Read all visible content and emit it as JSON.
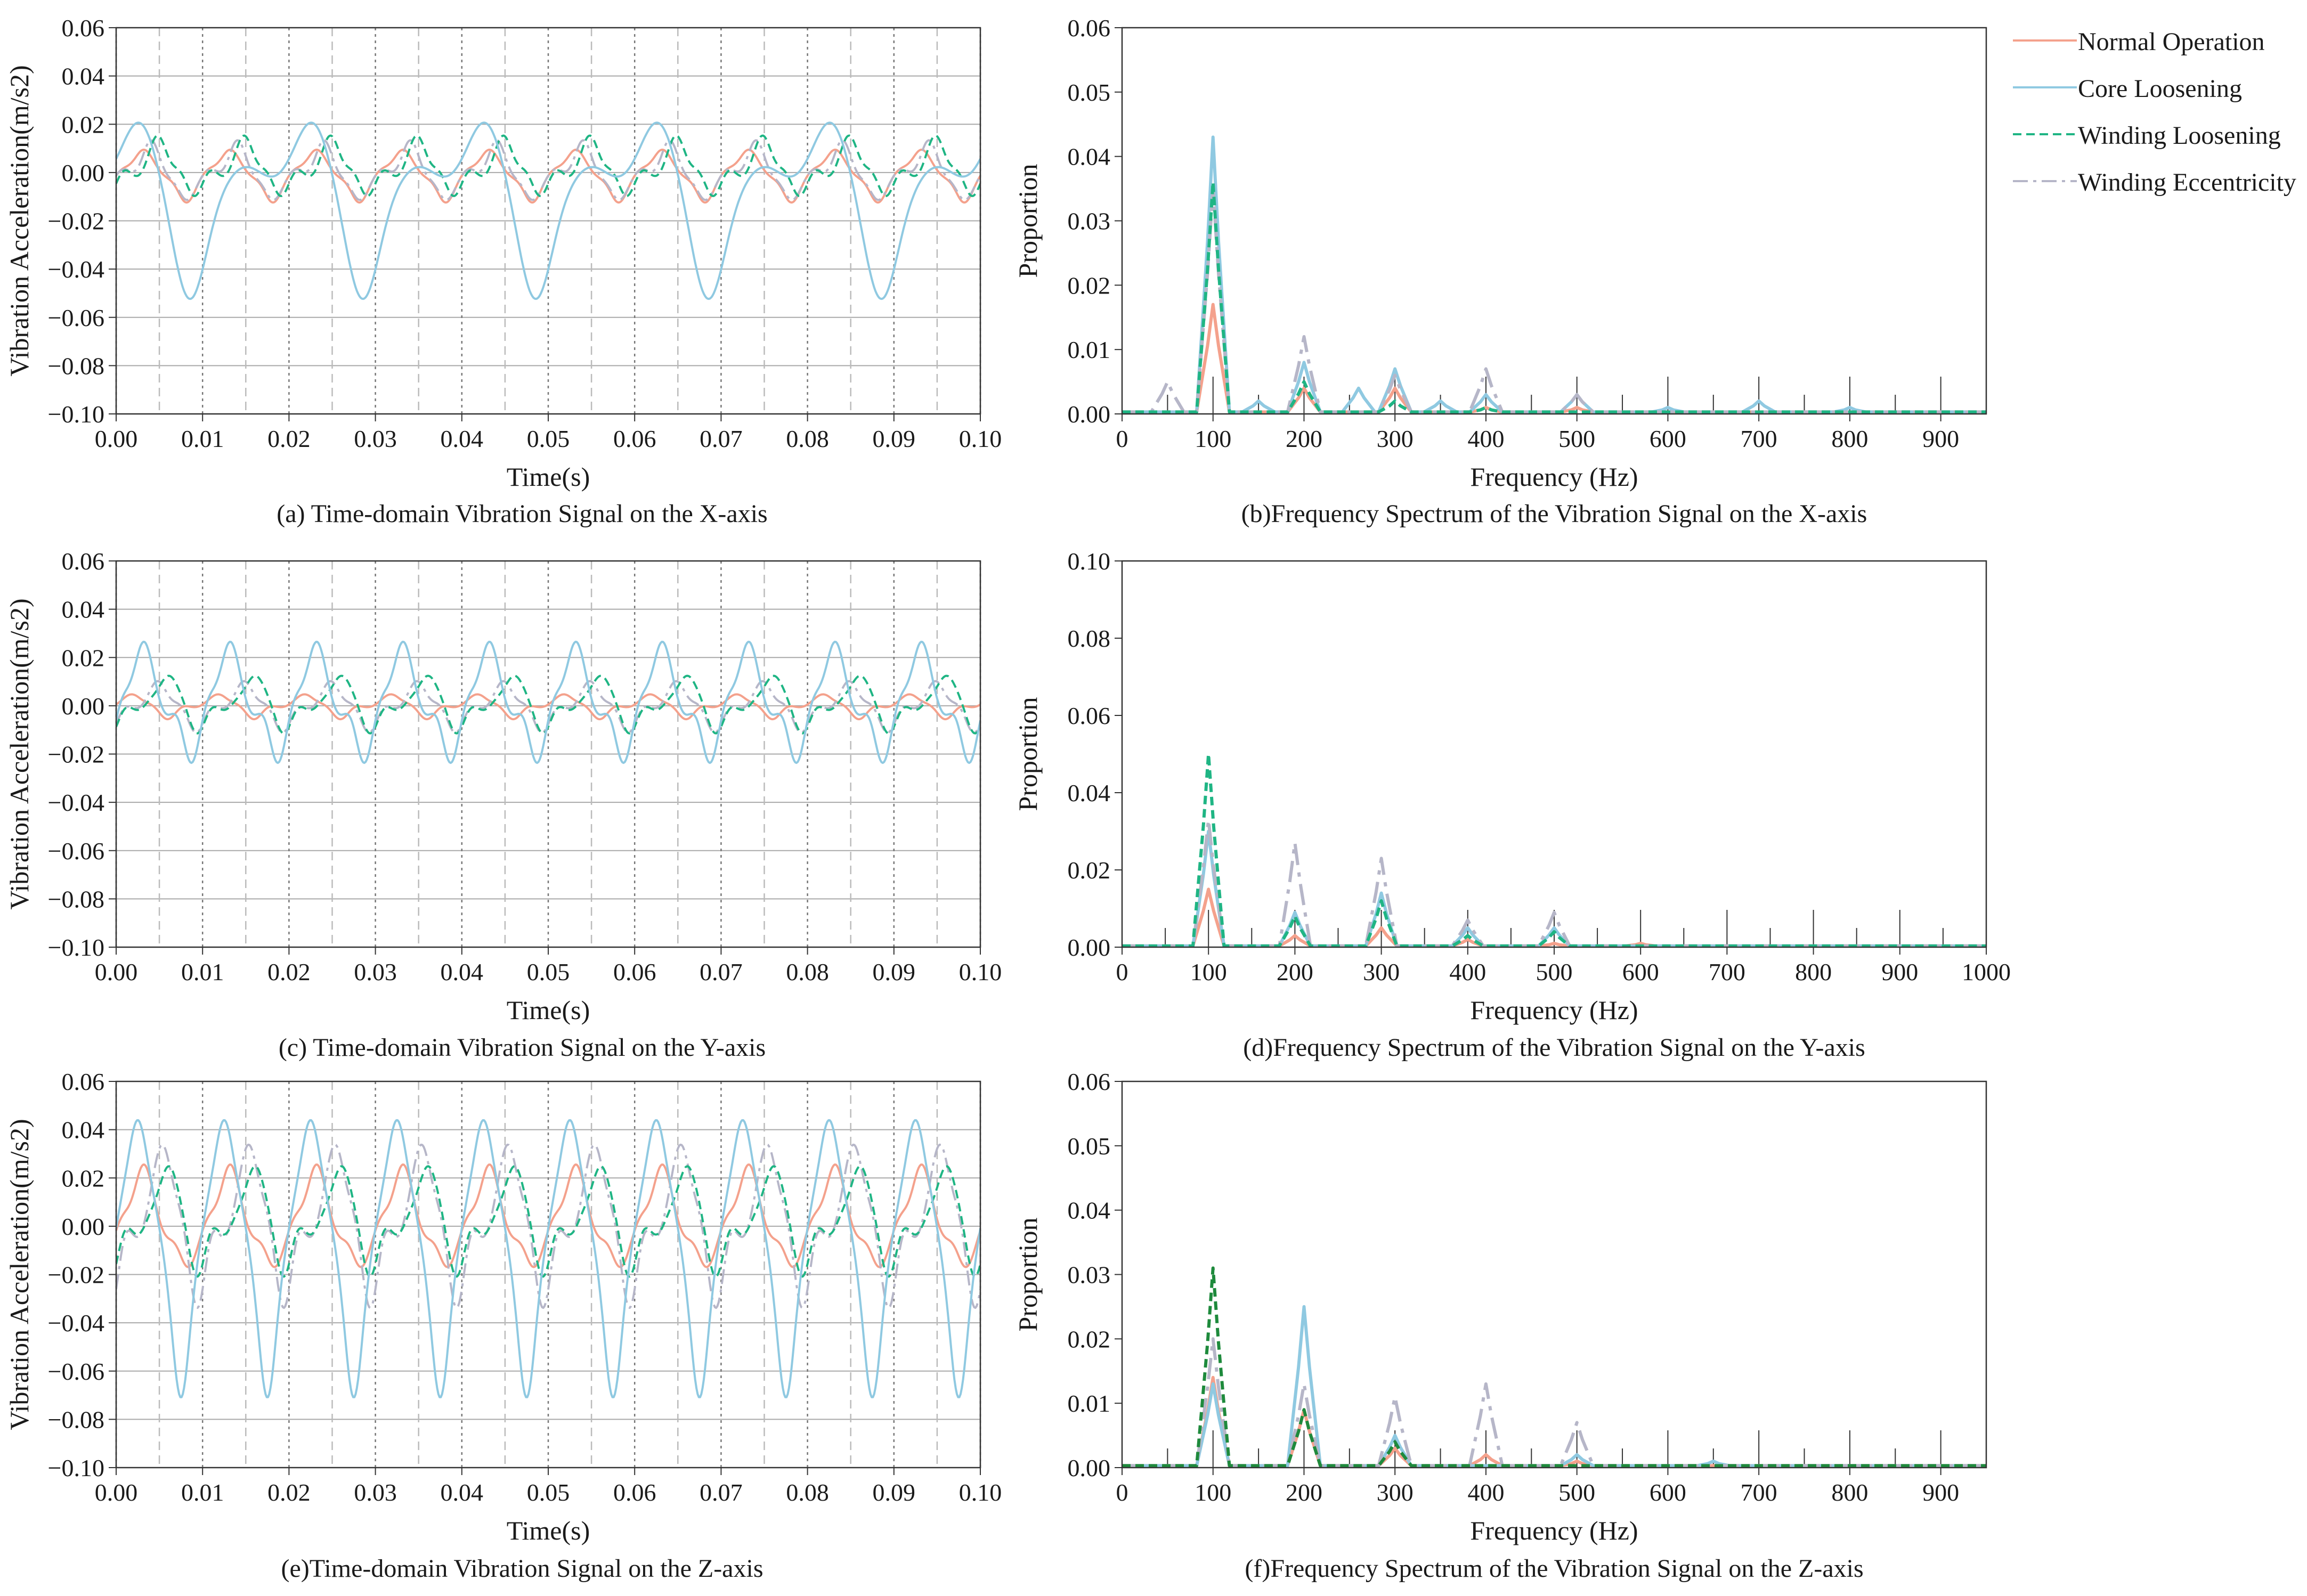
{
  "legend": {
    "entries": [
      {
        "label": "Normal Operation",
        "color": "#f4a18c",
        "dash": "solid"
      },
      {
        "label": "Core Loosening",
        "color": "#8fc9e1",
        "dash": "solid"
      },
      {
        "label": "Winding Loosening",
        "color": "#1fb584",
        "dash": "dashed"
      },
      {
        "label": "Winding Eccentricity",
        "color": "#b6b6c8",
        "dash": "dashdot"
      }
    ],
    "placement": "top-right"
  },
  "chart_data": [
    {
      "id": "a",
      "type": "line",
      "caption": "(a) Time-domain Vibration Signal on the X-axis",
      "xlabel": "Time(s)",
      "ylabel": "Vibration Acceleration(m/s2)",
      "xlim": [
        0,
        0.1
      ],
      "ylim": [
        -0.1,
        0.06
      ],
      "xticks": [
        "0.00",
        "0.01",
        "0.02",
        "0.03",
        "0.04",
        "0.05",
        "0.06",
        "0.07",
        "0.08",
        "0.09",
        "0.10"
      ],
      "yticks": [
        "0.06",
        "0.04",
        "0.02",
        "0.00",
        "−0.02",
        "−0.04",
        "−0.06",
        "−0.08",
        "−0.10"
      ],
      "series": [
        {
          "name": "Normal Operation",
          "period": 0.01,
          "peak_time": [
            0.003,
            0.008
          ],
          "peak_value": [
            0.01,
            -0.013
          ]
        },
        {
          "name": "Core Loosening",
          "period": 0.02,
          "peak_time": [
            0.003,
            0.0085
          ],
          "peak_value": [
            0.02,
            -0.055
          ]
        },
        {
          "name": "Winding Loosening",
          "period": 0.01,
          "peak_time": [
            0.005,
            0.009
          ],
          "peak_value": [
            0.015,
            -0.008
          ]
        },
        {
          "name": "Winding Eccentricity",
          "period": 0.01,
          "peak_time": [
            0.004,
            0.008
          ],
          "peak_value": [
            0.012,
            -0.012
          ]
        }
      ]
    },
    {
      "id": "b",
      "type": "line",
      "caption": "(b)Frequency Spectrum of the Vibration Signal on the X-axis",
      "xlabel": "Frequency (Hz)",
      "ylabel": "Proportion",
      "xlim": [
        0,
        950
      ],
      "ylim": [
        0,
        0.06
      ],
      "xticks": [
        "0",
        "100",
        "200",
        "300",
        "400",
        "500",
        "600",
        "700",
        "800",
        "900"
      ],
      "yticks": [
        "0.06",
        "0.05",
        "0.04",
        "0.03",
        "0.02",
        "0.01",
        "0.00"
      ],
      "series": [
        {
          "name": "Normal Operation",
          "x": [
            100,
            200,
            300,
            400,
            500
          ],
          "y": [
            0.017,
            0.004,
            0.004,
            0.001,
            0.001
          ]
        },
        {
          "name": "Core Loosening",
          "x": [
            100,
            150,
            200,
            260,
            300,
            350,
            400,
            500,
            600,
            700,
            800
          ],
          "y": [
            0.043,
            0.002,
            0.008,
            0.004,
            0.007,
            0.002,
            0.003,
            0.003,
            0.001,
            0.002,
            0.001
          ]
        },
        {
          "name": "Winding Loosening",
          "x": [
            100,
            200,
            300,
            400
          ],
          "y": [
            0.036,
            0.005,
            0.002,
            0.001
          ]
        },
        {
          "name": "Winding Eccentricity",
          "x": [
            50,
            100,
            200,
            300,
            400,
            500
          ],
          "y": [
            0.005,
            0.035,
            0.012,
            0.006,
            0.007,
            0.003
          ]
        }
      ]
    },
    {
      "id": "c",
      "type": "line",
      "caption": "(c) Time-domain Vibration Signal on the Y-axis",
      "xlabel": "Time(s)",
      "ylabel": "Vibration Acceleration(m/s2)",
      "xlim": [
        0,
        0.1
      ],
      "ylim": [
        -0.1,
        0.06
      ],
      "xticks": [
        "0.00",
        "0.01",
        "0.02",
        "0.03",
        "0.04",
        "0.05",
        "0.06",
        "0.07",
        "0.08",
        "0.09",
        "0.10"
      ],
      "yticks": [
        "0.06",
        "0.04",
        "0.02",
        "0.00",
        "−0.02",
        "−0.04",
        "−0.06",
        "−0.08",
        "−0.10"
      ],
      "series": [
        {
          "name": "Normal Operation",
          "period": 0.01,
          "peak_time": [
            0.002,
            0.006
          ],
          "peak_value": [
            0.005,
            -0.005
          ]
        },
        {
          "name": "Core Loosening",
          "period": 0.01,
          "peak_time": [
            0.003,
            0.0085
          ],
          "peak_value": [
            0.028,
            -0.022
          ]
        },
        {
          "name": "Winding Loosening",
          "period": 0.01,
          "peak_time": [
            0.006,
            0.0095
          ],
          "peak_value": [
            0.014,
            -0.01
          ]
        },
        {
          "name": "Winding Eccentricity",
          "period": 0.01,
          "peak_time": [
            0.005,
            0.0093
          ],
          "peak_value": [
            0.01,
            -0.01
          ]
        }
      ]
    },
    {
      "id": "d",
      "type": "line",
      "caption": "(d)Frequency Spectrum of the Vibration Signal on the Y-axis",
      "xlabel": "Frequency (Hz)",
      "ylabel": "Proportion",
      "xlim": [
        0,
        1000
      ],
      "ylim": [
        0,
        0.1
      ],
      "xticks": [
        "0",
        "100",
        "200",
        "300",
        "400",
        "500",
        "600",
        "700",
        "800",
        "900",
        "1000"
      ],
      "yticks": [
        "0.10",
        "0.08",
        "0.06",
        "0.04",
        "0.02",
        "0.00"
      ],
      "series": [
        {
          "name": "Normal Operation",
          "x": [
            100,
            200,
            300,
            400,
            500,
            600
          ],
          "y": [
            0.015,
            0.003,
            0.005,
            0.002,
            0.001,
            0.001
          ]
        },
        {
          "name": "Core Loosening",
          "x": [
            100,
            200,
            300,
            400,
            500
          ],
          "y": [
            0.03,
            0.009,
            0.014,
            0.005,
            0.005
          ]
        },
        {
          "name": "Winding Loosening",
          "x": [
            100,
            200,
            300,
            400,
            500
          ],
          "y": [
            0.05,
            0.008,
            0.012,
            0.003,
            0.004
          ]
        },
        {
          "name": "Winding Eccentricity",
          "x": [
            100,
            200,
            300,
            400,
            500
          ],
          "y": [
            0.033,
            0.027,
            0.023,
            0.007,
            0.009
          ]
        }
      ]
    },
    {
      "id": "e",
      "type": "line",
      "caption": "(e)Time-domain Vibration Signal on the Z-axis",
      "xlabel": "Time(s)",
      "ylabel": "Vibration Acceleration(m/s2)",
      "xlim": [
        0,
        0.1
      ],
      "ylim": [
        -0.1,
        0.06
      ],
      "xticks": [
        "0.00",
        "0.01",
        "0.02",
        "0.03",
        "0.04",
        "0.05",
        "0.06",
        "0.07",
        "0.08",
        "0.09",
        "0.10"
      ],
      "yticks": [
        "0.06",
        "0.04",
        "0.02",
        "0.00",
        "−0.02",
        "−0.04",
        "−0.06",
        "−0.08",
        "−0.10"
      ],
      "series": [
        {
          "name": "Normal Operation",
          "period": 0.01,
          "peak_time": [
            0.003,
            0.008
          ],
          "peak_value": [
            0.027,
            -0.018
          ]
        },
        {
          "name": "Core Loosening",
          "period": 0.01,
          "peak_time": [
            0.0025,
            0.0075
          ],
          "peak_value": [
            0.05,
            -0.077
          ]
        },
        {
          "name": "Winding Loosening",
          "period": 0.01,
          "peak_time": [
            0.006,
            0.0095
          ],
          "peak_value": [
            0.028,
            -0.018
          ]
        },
        {
          "name": "Winding Eccentricity",
          "period": 0.01,
          "peak_time": [
            0.0055,
            0.0095
          ],
          "peak_value": [
            0.037,
            -0.03
          ]
        }
      ]
    },
    {
      "id": "f",
      "type": "line",
      "caption": "(f)Frequency Spectrum of the Vibration Signal on the Z-axis",
      "xlabel": "Frequency (Hz)",
      "ylabel": "Proportion",
      "xlim": [
        0,
        950
      ],
      "ylim": [
        0,
        0.06
      ],
      "xticks": [
        "0",
        "100",
        "200",
        "300",
        "400",
        "500",
        "600",
        "700",
        "800",
        "900"
      ],
      "yticks": [
        "0.06",
        "0.05",
        "0.04",
        "0.03",
        "0.02",
        "0.01",
        "0.00"
      ],
      "series": [
        {
          "name": "Normal Operation",
          "x": [
            100,
            200,
            300,
            400,
            500
          ],
          "y": [
            0.014,
            0.009,
            0.003,
            0.002,
            0.001
          ]
        },
        {
          "name": "Core Loosening",
          "x": [
            100,
            200,
            300,
            500,
            650
          ],
          "y": [
            0.013,
            0.025,
            0.005,
            0.002,
            0.001
          ]
        },
        {
          "name": "Winding Loosening",
          "x": [
            100,
            200,
            300
          ],
          "y": [
            0.031,
            0.009,
            0.004
          ]
        },
        {
          "name": "Winding Eccentricity",
          "x": [
            100,
            200,
            300,
            400,
            500
          ],
          "y": [
            0.02,
            0.013,
            0.011,
            0.013,
            0.007
          ]
        }
      ]
    }
  ]
}
